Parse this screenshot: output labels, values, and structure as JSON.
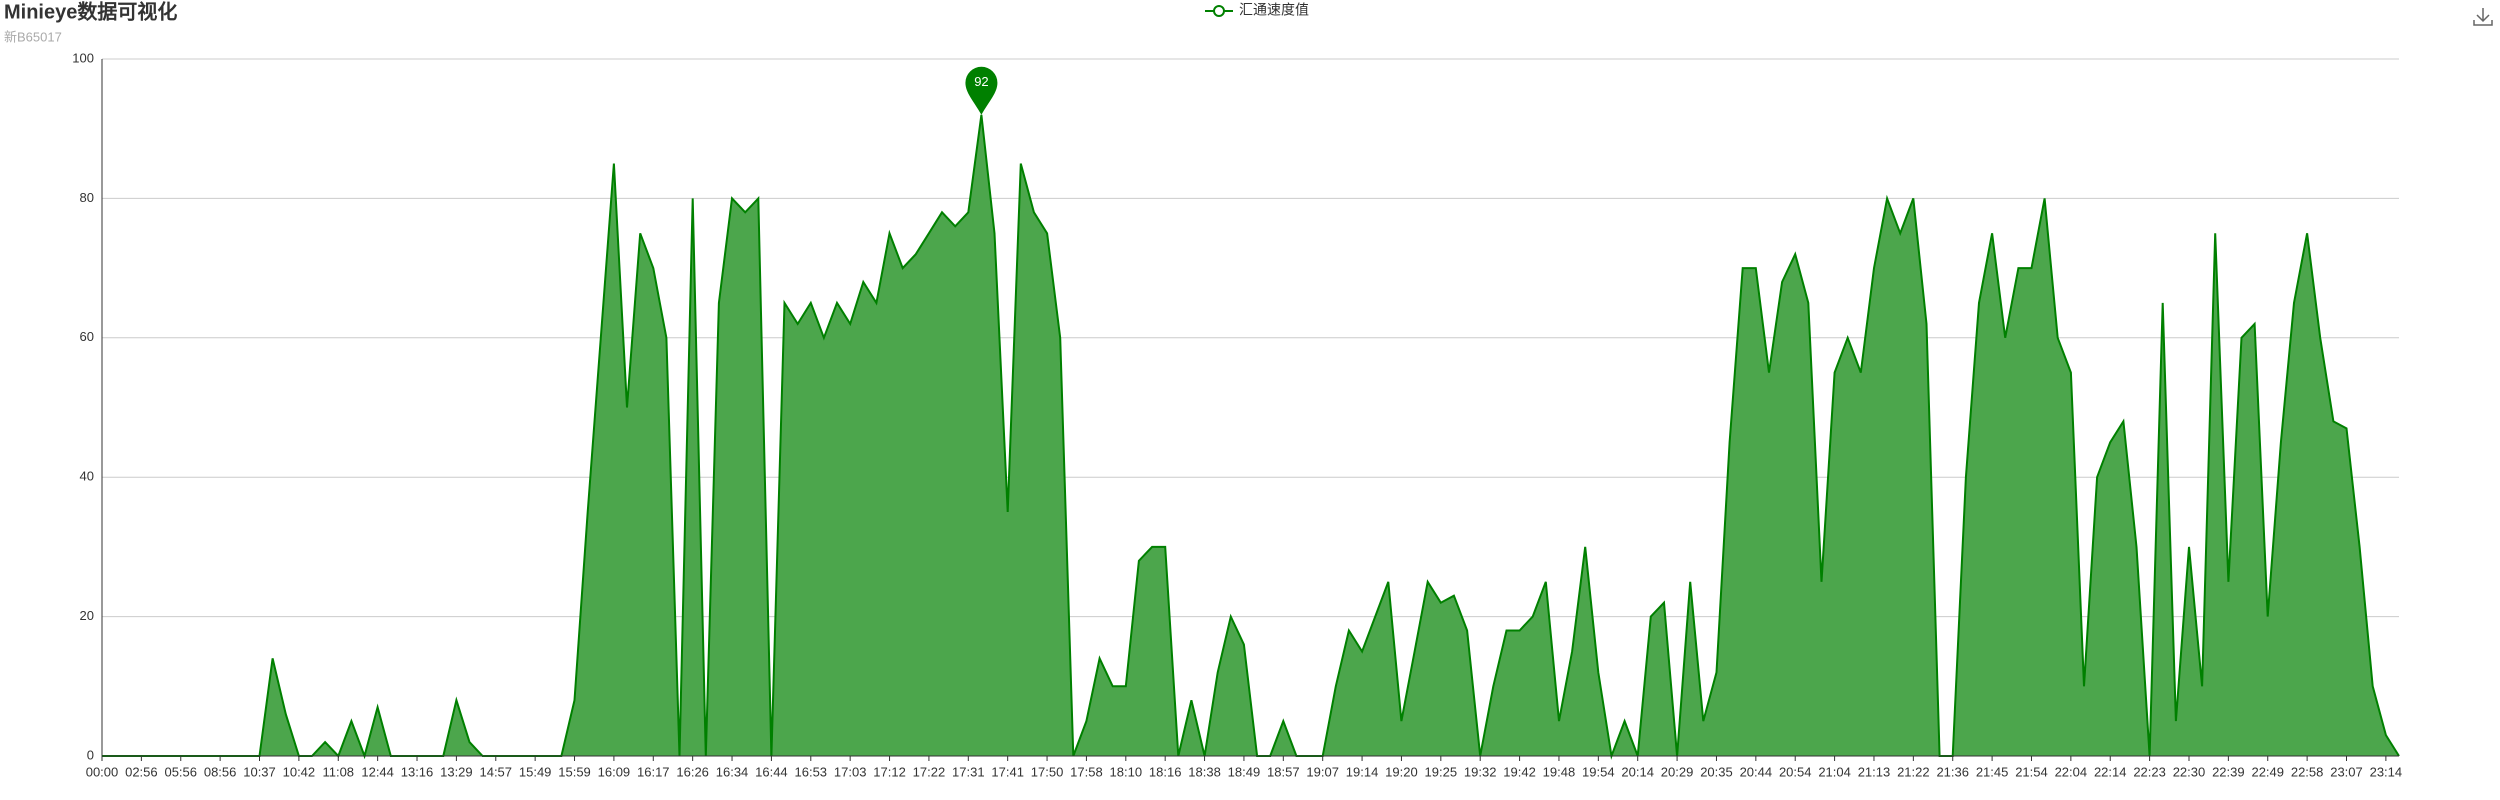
{
  "chart_data": {
    "type": "line",
    "title": "Minieye数据可视化",
    "subtitle": "新B65017",
    "categories": [
      "00:00",
      null,
      null,
      "02:56",
      null,
      null,
      "05:56",
      null,
      null,
      "08:56",
      null,
      null,
      "10:37",
      null,
      null,
      "10:42",
      null,
      null,
      "11:08",
      null,
      null,
      "12:44",
      null,
      null,
      "13:16",
      null,
      null,
      "13:29",
      null,
      null,
      "14:57",
      null,
      null,
      "15:49",
      null,
      null,
      "15:59",
      null,
      null,
      "16:09",
      null,
      null,
      "16:17",
      null,
      null,
      "16:26",
      null,
      null,
      "16:34",
      null,
      null,
      "16:44",
      null,
      null,
      "16:53",
      null,
      null,
      "17:03",
      null,
      null,
      "17:12",
      null,
      null,
      "17:22",
      null,
      null,
      "17:31",
      null,
      null,
      "17:41",
      null,
      null,
      "17:50",
      null,
      null,
      "17:58",
      null,
      null,
      "18:10",
      null,
      null,
      "18:16",
      null,
      null,
      "18:38",
      null,
      null,
      "18:49",
      null,
      null,
      "18:57",
      null,
      null,
      "19:07",
      null,
      null,
      "19:14",
      null,
      null,
      "19:20",
      null,
      null,
      "19:25",
      null,
      null,
      "19:32",
      null,
      null,
      "19:42",
      null,
      null,
      "19:48",
      null,
      null,
      "19:54",
      null,
      null,
      "20:14",
      null,
      null,
      "20:29",
      null,
      null,
      "20:35",
      null,
      null,
      "20:44",
      null,
      null,
      "20:54",
      null,
      null,
      "21:04",
      null,
      null,
      "21:13",
      null,
      null,
      "21:22",
      null,
      null,
      "21:36",
      null,
      null,
      "21:45",
      null,
      null,
      "21:54",
      null,
      null,
      "22:04",
      null,
      null,
      "22:14",
      null,
      null,
      "22:23",
      null,
      null,
      "22:30",
      null,
      null,
      "22:39",
      null,
      null,
      "22:49",
      null,
      null,
      "22:58",
      null,
      null,
      "23:07",
      null,
      null,
      "23:14",
      null
    ],
    "series": [
      {
        "name": "汇通速度值",
        "color": "#008000",
        "area_color": "#4ca64c",
        "values": [
          0,
          0,
          0,
          0,
          0,
          0,
          0,
          0,
          0,
          0,
          0,
          0,
          0,
          14,
          6,
          0,
          0,
          2,
          0,
          5,
          0,
          7,
          0,
          0,
          0,
          0,
          0,
          8,
          2,
          0,
          0,
          0,
          0,
          0,
          0,
          0,
          8,
          35,
          60,
          85,
          50,
          75,
          70,
          60,
          0,
          80,
          0,
          65,
          80,
          78,
          80,
          0,
          65,
          62,
          65,
          60,
          65,
          62,
          68,
          65,
          75,
          70,
          72,
          75,
          78,
          76,
          78,
          92,
          75,
          35,
          85,
          78,
          75,
          60,
          0,
          5,
          14,
          10,
          10,
          28,
          30,
          30,
          0,
          8,
          0,
          12,
          20,
          16,
          0,
          0,
          5,
          0,
          0,
          0,
          10,
          18,
          15,
          20,
          25,
          5,
          15,
          25,
          22,
          23,
          18,
          0,
          10,
          18,
          18,
          20,
          25,
          5,
          15,
          30,
          12,
          0,
          5,
          0,
          20,
          22,
          0,
          25,
          5,
          12,
          45,
          70,
          70,
          55,
          68,
          72,
          65,
          25,
          55,
          60,
          55,
          70,
          80,
          75,
          80,
          62,
          0,
          0,
          40,
          65,
          75,
          60,
          70,
          70,
          80,
          60,
          55,
          10,
          40,
          45,
          48,
          30,
          0,
          65,
          5,
          30,
          10,
          75,
          25,
          60,
          62,
          20,
          45,
          65,
          75,
          60,
          48,
          47,
          30,
          10,
          3,
          0
        ]
      }
    ],
    "ylim": [
      0,
      100
    ],
    "yticks": [
      0,
      20,
      40,
      60,
      80,
      100
    ],
    "grid": true
  }
}
